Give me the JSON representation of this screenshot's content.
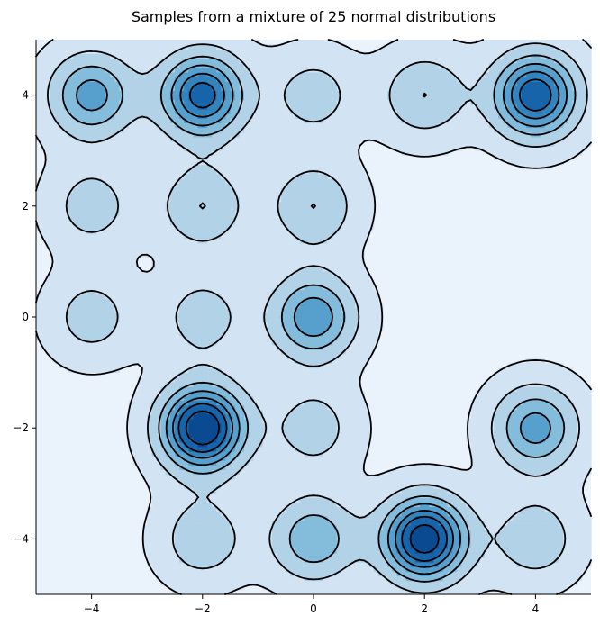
{
  "chart_data": {
    "type": "contour",
    "title": "Samples from a mixture of 25 normal distributions",
    "xlabel": "",
    "ylabel": "",
    "xlim": [
      -5,
      5
    ],
    "ylim": [
      -5,
      5
    ],
    "x_ticks": [
      -4,
      -2,
      0,
      2,
      4
    ],
    "y_ticks": [
      -4,
      -2,
      0,
      2,
      4
    ],
    "x_tick_labels": [
      "−4",
      "−2",
      "0",
      "2",
      "4"
    ],
    "y_tick_labels": [
      "−4",
      "−2",
      "0",
      "2",
      "4"
    ],
    "grid": false,
    "colormap": "Blues",
    "contour_line_color": "#000000",
    "fill_colors": [
      "#eaf2fc",
      "#d2e3f3",
      "#b1d2e7",
      "#84bcdc",
      "#57a0ce",
      "#3383be",
      "#1764ab",
      "#0a4a90"
    ],
    "component_centers": [
      {
        "x": -4,
        "y": 4,
        "weight": 0.7
      },
      {
        "x": -2,
        "y": 4,
        "weight": 1.0
      },
      {
        "x": 0,
        "y": 4,
        "weight": 0.35
      },
      {
        "x": 2,
        "y": 4,
        "weight": 0.45
      },
      {
        "x": 4,
        "y": 4,
        "weight": 1.05
      },
      {
        "x": -4,
        "y": 2,
        "weight": 0.35
      },
      {
        "x": -2,
        "y": 2,
        "weight": 0.45
      },
      {
        "x": 0,
        "y": 2,
        "weight": 0.45
      },
      {
        "x": -4,
        "y": 0,
        "weight": 0.35
      },
      {
        "x": -2,
        "y": 0,
        "weight": 0.35
      },
      {
        "x": 0,
        "y": 0,
        "weight": 0.75
      },
      {
        "x": -2,
        "y": -2,
        "weight": 1.25
      },
      {
        "x": 0,
        "y": -2,
        "weight": 0.35
      },
      {
        "x": 4,
        "y": -2,
        "weight": 0.7
      },
      {
        "x": -2,
        "y": -4,
        "weight": 0.4
      },
      {
        "x": 0,
        "y": -4,
        "weight": 0.6
      },
      {
        "x": 2,
        "y": -4,
        "weight": 1.2
      },
      {
        "x": 4,
        "y": -4,
        "weight": 0.4
      }
    ]
  }
}
